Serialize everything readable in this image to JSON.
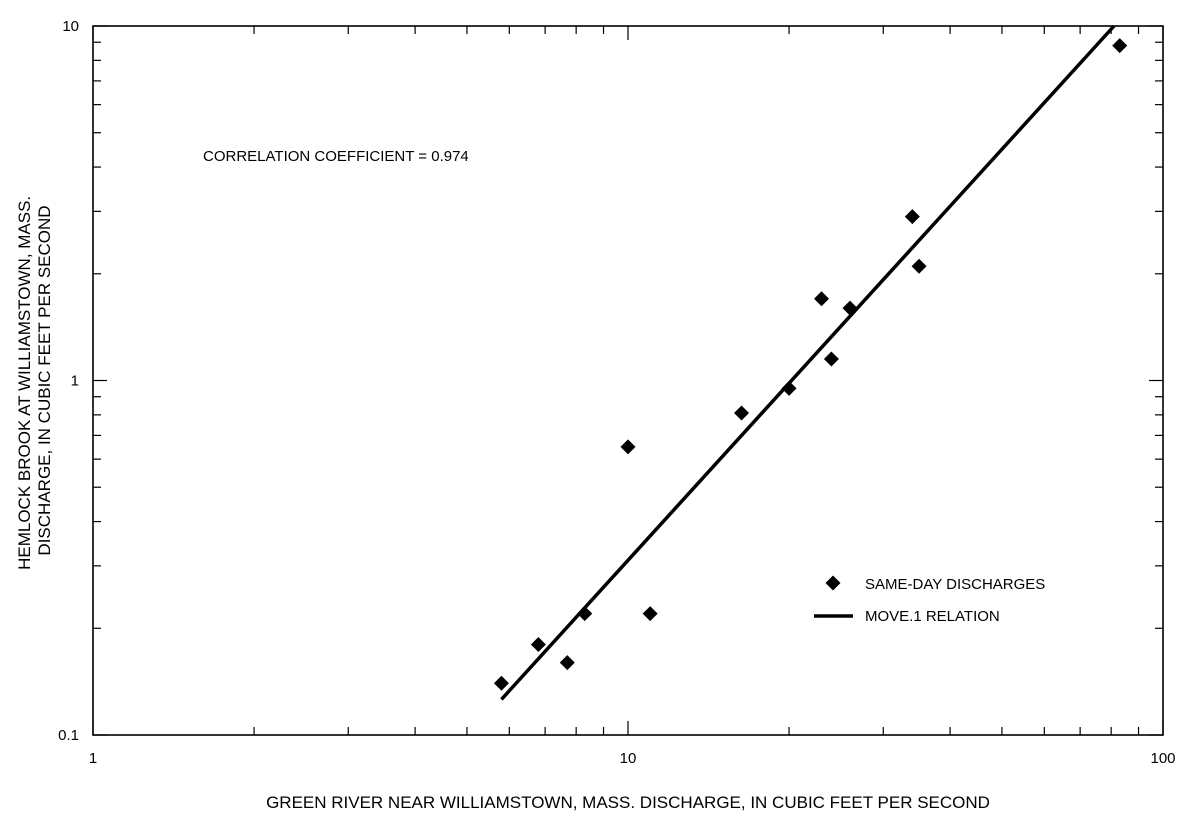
{
  "chart_data": {
    "type": "scatter",
    "title": "",
    "xlabel": "GREEN RIVER NEAR WILLIAMSTOWN, MASS. DISCHARGE, IN CUBIC FEET PER SECOND",
    "ylabel": [
      "HEMLOCK BROOK AT WILLIAMSTOWN, MASS.",
      "DISCHARGE, IN CUBIC FEET PER SECOND"
    ],
    "xscale": "log",
    "yscale": "log",
    "xlim": [
      1,
      100
    ],
    "ylim": [
      0.1,
      10
    ],
    "xticks": [
      {
        "value": 1,
        "label": "1"
      },
      {
        "value": 10,
        "label": "10"
      },
      {
        "value": 100,
        "label": "100"
      }
    ],
    "yticks": [
      {
        "value": 0.1,
        "label": "0.1"
      },
      {
        "value": 1,
        "label": "1"
      },
      {
        "value": 10,
        "label": "10"
      }
    ],
    "grid": false,
    "annotation": "CORRELATION COEFFICIENT = 0.974",
    "legend_position": "lower-right",
    "series": [
      {
        "name": "SAME-DAY DISCHARGES",
        "type": "scatter",
        "marker": "diamond",
        "color": "#000000",
        "points": [
          {
            "x": 5.8,
            "y": 0.14
          },
          {
            "x": 6.8,
            "y": 0.18
          },
          {
            "x": 7.7,
            "y": 0.16
          },
          {
            "x": 8.3,
            "y": 0.22
          },
          {
            "x": 10.0,
            "y": 0.65
          },
          {
            "x": 11.0,
            "y": 0.22
          },
          {
            "x": 16.3,
            "y": 0.81
          },
          {
            "x": 20.0,
            "y": 0.95
          },
          {
            "x": 23.0,
            "y": 1.7
          },
          {
            "x": 24.0,
            "y": 1.15
          },
          {
            "x": 26.0,
            "y": 1.6
          },
          {
            "x": 34.0,
            "y": 2.9
          },
          {
            "x": 35.0,
            "y": 2.1
          },
          {
            "x": 83.0,
            "y": 8.8
          }
        ]
      },
      {
        "name": "MOVE.1 RELATION",
        "type": "line",
        "color": "#000000",
        "points": [
          {
            "x": 5.8,
            "y": 0.126
          },
          {
            "x": 81.0,
            "y": 10.0
          }
        ]
      }
    ]
  }
}
